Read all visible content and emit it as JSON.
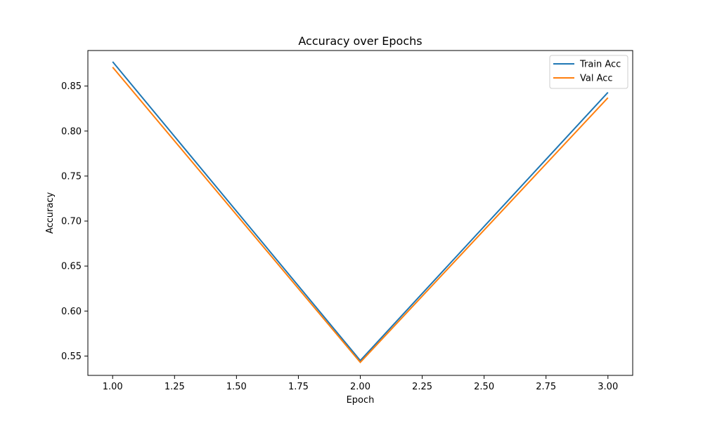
{
  "chart_data": {
    "type": "line",
    "title": "Accuracy over Epochs",
    "xlabel": "Epoch",
    "ylabel": "Accuracy",
    "x": [
      1,
      2,
      3
    ],
    "xlim": [
      0.9,
      3.1
    ],
    "ylim": [
      0.5285,
      0.8895
    ],
    "xticks": [
      "1.00",
      "1.25",
      "1.50",
      "1.75",
      "2.00",
      "2.25",
      "2.50",
      "2.75",
      "3.00"
    ],
    "yticks": [
      "0.55",
      "0.60",
      "0.65",
      "0.70",
      "0.75",
      "0.80",
      "0.85"
    ],
    "grid": false,
    "legend_position": "top-right",
    "series": [
      {
        "name": "Train Acc",
        "color": "#1f77b4",
        "values": [
          0.877,
          0.545,
          0.843
        ]
      },
      {
        "name": "Val Acc",
        "color": "#ff7f0e",
        "values": [
          0.871,
          0.543,
          0.837
        ]
      }
    ]
  }
}
